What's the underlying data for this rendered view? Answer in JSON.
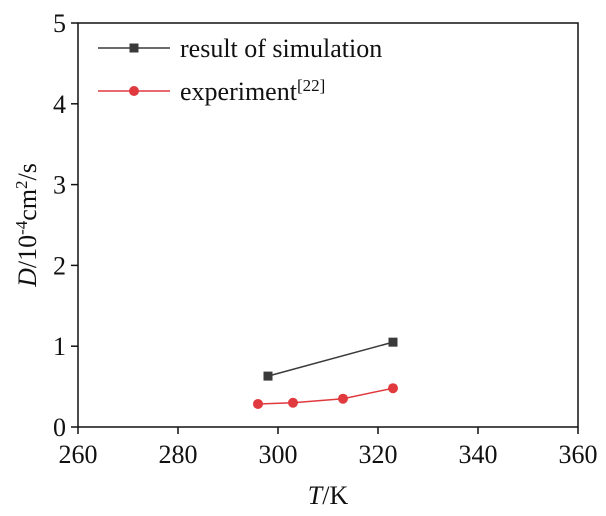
{
  "chart_data": {
    "type": "line",
    "xlabel": [
      "T",
      "/K"
    ],
    "ylabel": [
      "D",
      "/10",
      "-4",
      "cm",
      "2",
      "/s"
    ],
    "xlim": [
      260,
      360
    ],
    "xticks": [
      260,
      280,
      300,
      320,
      340,
      360
    ],
    "ylim": [
      0,
      5
    ],
    "yticks": [
      0,
      1,
      2,
      3,
      4,
      5
    ],
    "legend": "top-left",
    "series": [
      {
        "name": "result of simulation",
        "color": "#3a3a3a",
        "marker": "square",
        "x": [
          298,
          323
        ],
        "values": [
          0.63,
          1.05
        ]
      },
      {
        "name": "experiment",
        "name_sup": "[22]",
        "color": "#e0393e",
        "marker": "circle",
        "x": [
          296,
          303,
          313,
          323
        ],
        "values": [
          0.285,
          0.3,
          0.35,
          0.48
        ]
      }
    ]
  }
}
